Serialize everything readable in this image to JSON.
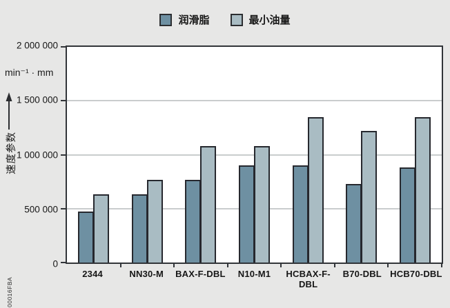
{
  "page": {
    "background": "#e7e7e6",
    "plot_background": "#ffffff",
    "axis_color": "#313438",
    "grid_color": "#c9cccd"
  },
  "legend": {
    "items": [
      {
        "label": "润滑脂",
        "color": "#6e90a2"
      },
      {
        "label": "最小油量",
        "color": "#a9bcc3"
      }
    ]
  },
  "axis": {
    "unit_label": "min⁻¹ · mm",
    "y_title": "速度参数",
    "y_ticks": [
      "2 000 000",
      "1 500 000",
      "1 000 000",
      "500 000",
      "0"
    ]
  },
  "figure_id": "00016FBA",
  "chart_data": {
    "type": "bar",
    "title": "",
    "xlabel": "",
    "ylabel": "速度参数",
    "y_unit": "min⁻¹ · mm",
    "ylim": [
      0,
      2000000
    ],
    "grid": true,
    "legend_position": "top",
    "categories": [
      "2344",
      "NN30-M",
      "BAX-F-DBL",
      "N10-M1",
      "HCBAX-F-DBL",
      "B70-DBL",
      "HCB70-DBL"
    ],
    "series": [
      {
        "name": "润滑脂",
        "color": "#6e90a2",
        "values": [
          470000,
          630000,
          770000,
          900000,
          900000,
          730000,
          880000
        ]
      },
      {
        "name": "最小油量",
        "color": "#a9bcc3",
        "values": [
          630000,
          770000,
          1080000,
          1080000,
          1350000,
          1220000,
          1350000
        ]
      }
    ]
  }
}
